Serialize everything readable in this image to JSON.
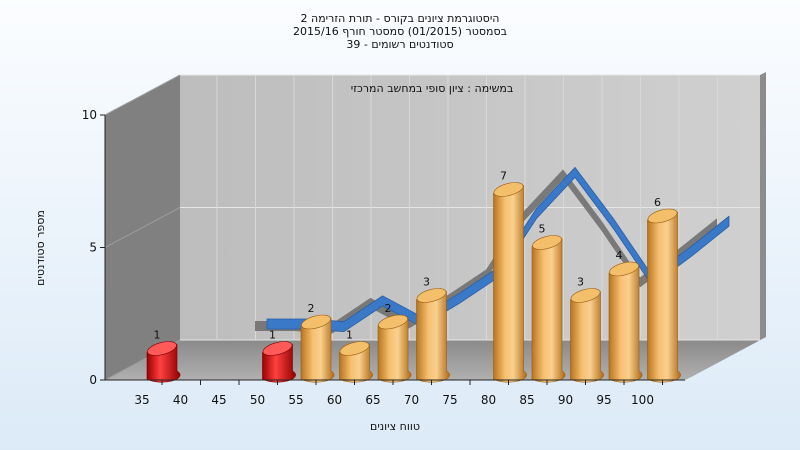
{
  "header": {
    "title_lines": [
      "היסטוגרמת ציונים בקורס - תורת הזרימה 2",
      "בסמסטר  (01/2015)  סמסטר חורף 2015/16",
      "סטודנטים רשומים - 39"
    ]
  },
  "chart_data": {
    "type": "bar",
    "subtitle": "במשימה : ציון סופי במחשב המרכזי",
    "xlabel": "טווח ציונים",
    "ylabel": "מספר סטודנטים",
    "categories": [
      "35",
      "40",
      "45",
      "50",
      "55",
      "60",
      "65",
      "70",
      "75",
      "80",
      "85",
      "90",
      "95",
      "100"
    ],
    "bars": [
      {
        "bin": "35",
        "value": 1,
        "color": "red"
      },
      {
        "bin": "50",
        "value": 1,
        "color": "red"
      },
      {
        "bin": "55",
        "value": 2,
        "color": "orange"
      },
      {
        "bin": "60",
        "value": 1,
        "color": "orange"
      },
      {
        "bin": "65",
        "value": 2,
        "color": "orange"
      },
      {
        "bin": "70",
        "value": 3,
        "color": "orange"
      },
      {
        "bin": "80",
        "value": 7,
        "color": "orange"
      },
      {
        "bin": "85",
        "value": 5,
        "color": "orange"
      },
      {
        "bin": "90",
        "value": 3,
        "color": "orange"
      },
      {
        "bin": "95",
        "value": 4,
        "color": "orange"
      },
      {
        "bin": "100",
        "value": 6,
        "color": "orange"
      }
    ],
    "trend": [
      {
        "x": 45,
        "y": 1.4
      },
      {
        "x": 50,
        "y": 1.4
      },
      {
        "x": 55,
        "y": 1.3
      },
      {
        "x": 60,
        "y": 2.3
      },
      {
        "x": 65,
        "y": 1.5
      },
      {
        "x": 70,
        "y": 2.4
      },
      {
        "x": 75,
        "y": 3.4
      },
      {
        "x": 80,
        "y": 5.7
      },
      {
        "x": 85,
        "y": 7.3
      },
      {
        "x": 90,
        "y": 5.3
      },
      {
        "x": 95,
        "y": 3.1
      },
      {
        "x": 100,
        "y": 4.2
      },
      {
        "x": 105,
        "y": 5.4
      }
    ],
    "yticks": [
      0,
      5,
      10
    ],
    "ylim": [
      0,
      10
    ],
    "grid": true,
    "colors": {
      "bar_low": "#e01010",
      "bar_pass": "#e8a04a",
      "trend": "#3a78c8",
      "trend_shadow": "#707070",
      "wall_left": "#808080",
      "wall_back": "#c4c4c4",
      "floor": "#9a9a9a"
    }
  }
}
